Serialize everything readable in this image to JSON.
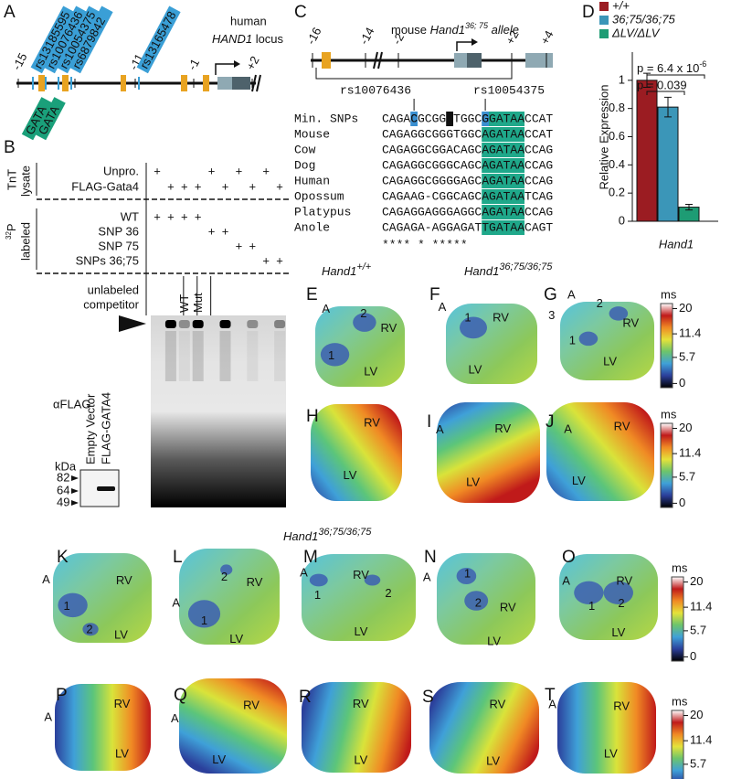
{
  "panel_a": {
    "letter": "A",
    "title_line1": "human",
    "gene": "HAND1",
    "title_rest": " locus",
    "snps": [
      "rs13185595",
      "rs10076436",
      "rs10054375",
      "rs6879842",
      "rs13165478"
    ],
    "gata": [
      "GATA",
      "GATA"
    ],
    "positions": [
      "-15",
      "-13",
      "-11",
      "-1",
      "+2"
    ]
  },
  "panel_b": {
    "letter": "B",
    "group1": [
      "TnT",
      "lysate"
    ],
    "group1_rows": [
      "Unpro.",
      "FLAG-Gata4"
    ],
    "group2_sup": "32",
    "group2": [
      "P",
      "labeled"
    ],
    "group2_rows": [
      "WT",
      "SNP 36",
      "SNP 75",
      "SNPs 36;75"
    ],
    "competitor": [
      "unlabeled",
      "competitor"
    ],
    "marks": [
      [
        "+",
        null,
        null,
        null,
        "+",
        null,
        "+",
        null,
        "+",
        null
      ],
      [
        null,
        "+",
        "+",
        "+",
        null,
        "+",
        null,
        "+",
        null,
        "+"
      ],
      [
        "+",
        "+",
        "+",
        "+",
        null,
        null,
        null,
        null,
        null,
        null
      ],
      [
        null,
        null,
        null,
        null,
        "+",
        "+",
        null,
        null,
        null,
        null
      ],
      [
        null,
        null,
        null,
        null,
        null,
        null,
        "+",
        "+",
        null,
        null
      ],
      [
        null,
        null,
        null,
        null,
        null,
        null,
        null,
        null,
        "+",
        "+"
      ]
    ],
    "competitor_lanes": [
      null,
      null,
      "WT",
      "Mut",
      null,
      null,
      null,
      null,
      null,
      null
    ],
    "western": {
      "antibody": "αFLAG",
      "lanes": [
        "Empty Vector",
        "FLAG-GATA4"
      ],
      "unit": "kDa",
      "markers": [
        "82",
        "64",
        "49"
      ]
    }
  },
  "panel_c": {
    "letter": "C",
    "title": [
      "mouse ",
      "Hand1",
      "36; 75",
      " allele"
    ],
    "positions": [
      "-16",
      "-14",
      "-2",
      "+2",
      "+4"
    ],
    "snps": [
      "rs10076436",
      "rs10054375"
    ],
    "alignment": [
      {
        "name": "Min. SNPs",
        "seq": "CAGACGCGGATGGCGGATAACCAT"
      },
      {
        "name": "Mouse",
        "seq": "CAGAGGCGGGTGGCAGATAACCAT"
      },
      {
        "name": "Cow",
        "seq": "CAGAGGCGGACAGCAGATAACCAG"
      },
      {
        "name": "Dog",
        "seq": "CAGAGGCGGGCAGCAGATAACCAG"
      },
      {
        "name": "Human",
        "seq": "CAGAGGCGGGGAGCAGATAACCAG"
      },
      {
        "name": "Opossum",
        "seq": "CAGAAG-CGGCAGCAGATAATCAG"
      },
      {
        "name": "Platypus",
        "seq": "CAGAGGAGGGAGGCAGATAACCAG"
      },
      {
        "name": "Anole",
        "seq": "CAGAGA-AGGAGATTGATAACAGT"
      }
    ],
    "conservation": "**** *        *****"
  },
  "panel_d": {
    "letter": "D",
    "annotations": [
      {
        "text": "p = 6.4 x 10",
        "sup": "-6"
      },
      {
        "text": "p = 0.039"
      }
    ]
  },
  "chart_data": {
    "type": "bar",
    "ylabel": "Relative Expression",
    "categories": [
      "Hand1"
    ],
    "series": [
      {
        "name": "+/+",
        "color": "#9b1c22",
        "values": [
          1.0
        ],
        "errors": [
          0.05
        ]
      },
      {
        "name": "36;75/36;75",
        "color": "#3b96b8",
        "values": [
          0.81
        ],
        "errors": [
          0.07
        ]
      },
      {
        "name": "ΔLV/ΔLV",
        "color": "#1e9c74",
        "values": [
          0.1
        ],
        "errors": [
          0.02
        ]
      }
    ],
    "ylim": [
      0,
      1.2
    ],
    "yticks": [
      0,
      0.2,
      0.4,
      0.6,
      0.8,
      1
    ]
  },
  "maps": {
    "headers": [
      {
        "gene": "Hand1",
        "genotype": "+/+"
      },
      {
        "gene": "Hand1",
        "genotype": "36;75/36;75"
      },
      {
        "gene": "Hand1",
        "genotype": "36;75/36;75"
      }
    ],
    "colorbar": {
      "unit": "ms",
      "ticks": [
        "20",
        "11.4",
        "5.7",
        "0"
      ]
    },
    "panels": [
      {
        "letter": "E",
        "labels": [
          "A",
          "2",
          "RV",
          "1",
          "LV"
        ]
      },
      {
        "letter": "F",
        "labels": [
          "A",
          "1",
          "RV",
          "LV"
        ]
      },
      {
        "letter": "G",
        "labels": [
          "A",
          "2",
          "3",
          "RV",
          "1",
          "LV"
        ]
      },
      {
        "letter": "H",
        "labels": [
          "RV",
          "LV"
        ]
      },
      {
        "letter": "I",
        "labels": [
          "A",
          "RV",
          "LV"
        ]
      },
      {
        "letter": "J",
        "labels": [
          "A",
          "RV",
          "LV"
        ]
      },
      {
        "letter": "K",
        "labels": [
          "A",
          "RV",
          "1",
          "2",
          "LV"
        ]
      },
      {
        "letter": "L",
        "labels": [
          "A",
          "2",
          "RV",
          "1",
          "LV"
        ]
      },
      {
        "letter": "M",
        "labels": [
          "A",
          "RV",
          "1",
          "2",
          "LV"
        ]
      },
      {
        "letter": "N",
        "labels": [
          "A",
          "1",
          "2",
          "RV",
          "LV"
        ]
      },
      {
        "letter": "O",
        "labels": [
          "A",
          "RV",
          "1",
          "2",
          "LV"
        ]
      },
      {
        "letter": "P",
        "labels": [
          "A",
          "RV",
          "LV"
        ]
      },
      {
        "letter": "Q",
        "labels": [
          "A",
          "RV",
          "LV"
        ]
      },
      {
        "letter": "R",
        "labels": [
          "RV",
          "LV"
        ]
      },
      {
        "letter": "S",
        "labels": [
          "RV",
          "LV"
        ]
      },
      {
        "letter": "T",
        "labels": [
          "A",
          "RV",
          "LV"
        ]
      }
    ]
  }
}
